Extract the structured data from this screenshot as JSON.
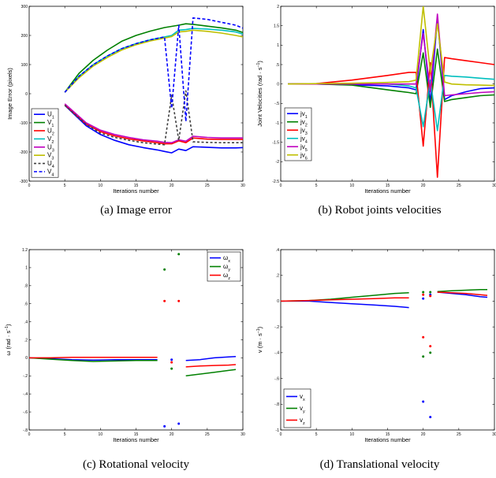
{
  "chart_data": [
    {
      "type": "line",
      "caption": "(a) Image error",
      "xlabel": "Iterations number",
      "ylabel": "Image Error (pixels)",
      "xlim": [
        0,
        30
      ],
      "ylim": [
        -300,
        300
      ],
      "xticks": [
        0,
        5,
        10,
        15,
        20,
        25,
        30
      ],
      "yticks": [
        -300,
        -200,
        -100,
        0,
        100,
        200,
        300
      ],
      "legend_position": "bottom-left",
      "series": [
        {
          "label": "U",
          "sub": "1",
          "color": "#0000ff",
          "dash": "",
          "x": [
            5,
            8,
            10,
            12,
            14,
            16,
            18,
            19,
            20,
            21,
            22,
            23,
            25,
            27,
            28,
            29,
            30
          ],
          "y": [
            -40,
            -110,
            -140,
            -160,
            -175,
            -185,
            -193,
            -198,
            -203,
            -190,
            -195,
            -182,
            -184,
            -186,
            -186,
            -186,
            -185
          ]
        },
        {
          "label": "V",
          "sub": "1",
          "color": "#008000",
          "dash": "",
          "x": [
            5,
            7,
            9,
            11,
            13,
            15,
            17,
            19,
            21,
            22,
            23,
            25,
            27,
            29,
            30
          ],
          "y": [
            5,
            70,
            115,
            150,
            180,
            200,
            215,
            227,
            235,
            240,
            238,
            232,
            226,
            218,
            210
          ]
        },
        {
          "label": "U",
          "sub": "2",
          "color": "#ff0000",
          "dash": "",
          "x": [
            5,
            8,
            10,
            12,
            14,
            16,
            18,
            19,
            20,
            21,
            22,
            23,
            25,
            27,
            29,
            30
          ],
          "y": [
            -38,
            -105,
            -130,
            -145,
            -155,
            -162,
            -168,
            -172,
            -172,
            -162,
            -168,
            -152,
            -156,
            -157,
            -157,
            -157
          ]
        },
        {
          "label": "V",
          "sub": "2",
          "color": "#00bfbf",
          "dash": "",
          "x": [
            5,
            7,
            9,
            11,
            13,
            15,
            17,
            19,
            20,
            21,
            22,
            23,
            25,
            27,
            29,
            30
          ],
          "y": [
            5,
            60,
            100,
            130,
            155,
            172,
            185,
            195,
            200,
            218,
            220,
            224,
            222,
            218,
            212,
            205
          ]
        },
        {
          "label": "U",
          "sub": "3",
          "color": "#bf00bf",
          "dash": "",
          "x": [
            5,
            8,
            10,
            12,
            14,
            16,
            18,
            19,
            20,
            21,
            22,
            23,
            25,
            27,
            29,
            30
          ],
          "y": [
            -35,
            -100,
            -125,
            -140,
            -150,
            -158,
            -163,
            -167,
            -168,
            -158,
            -163,
            -146,
            -150,
            -152,
            -152,
            -152
          ]
        },
        {
          "label": "V",
          "sub": "3",
          "color": "#bfbf00",
          "dash": "",
          "x": [
            5,
            7,
            9,
            11,
            13,
            15,
            17,
            19,
            20,
            21,
            22,
            23,
            25,
            27,
            29,
            30
          ],
          "y": [
            5,
            55,
            95,
            125,
            150,
            168,
            181,
            191,
            196,
            212,
            214,
            218,
            214,
            208,
            200,
            195
          ]
        },
        {
          "label": "U",
          "sub": "4",
          "color": "#404040",
          "dash": "3,2.5",
          "x": [
            5,
            8,
            10,
            12,
            14,
            16,
            18,
            19,
            20,
            21,
            22,
            23,
            25,
            27,
            29,
            30
          ],
          "y": [
            -40,
            -105,
            -135,
            -150,
            -160,
            -168,
            -173,
            -175,
            -5,
            -160,
            10,
            -165,
            -167,
            -168,
            -168,
            -168
          ]
        },
        {
          "label": "V",
          "sub": "4",
          "color": "#0000ff",
          "dash": "4,2.5",
          "x": [
            5,
            7,
            9,
            11,
            13,
            15,
            17,
            19,
            20,
            21,
            22,
            23,
            25,
            27,
            29,
            30
          ],
          "y": [
            5,
            60,
            100,
            130,
            155,
            172,
            185,
            195,
            -50,
            235,
            -95,
            260,
            255,
            245,
            235,
            225
          ]
        }
      ]
    },
    {
      "type": "line",
      "caption": "(b) Robot joints velocities",
      "xlabel": "Iterations number",
      "ylabel": "Joint Velocities (rad · s",
      "ylabel_sup": "−1",
      "ylabel_end": ")",
      "xlim": [
        0,
        30
      ],
      "ylim": [
        -2.5,
        2
      ],
      "xticks": [
        0,
        5,
        10,
        15,
        20,
        25,
        30
      ],
      "yticks": [
        -2.5,
        -2,
        -1.5,
        -1,
        -0.5,
        0,
        0.5,
        1,
        1.5,
        2
      ],
      "legend_position": "bottom-left",
      "series": [
        {
          "label": "jv",
          "sub": "1",
          "color": "#0000ff",
          "dash": "",
          "x": [
            1,
            5,
            10,
            15,
            18,
            19,
            20,
            21,
            22,
            23,
            24,
            26,
            28,
            30
          ],
          "y": [
            0,
            0,
            -0.02,
            -0.05,
            -0.1,
            -0.15,
            1.4,
            -0.5,
            1.7,
            -0.4,
            -0.3,
            -0.2,
            -0.12,
            -0.1
          ]
        },
        {
          "label": "jv",
          "sub": "2",
          "color": "#008000",
          "dash": "",
          "x": [
            1,
            5,
            10,
            15,
            18,
            19,
            20,
            21,
            22,
            23,
            24,
            26,
            28,
            30
          ],
          "y": [
            0,
            0,
            -0.03,
            -0.15,
            -0.22,
            -0.25,
            0.8,
            -0.6,
            0.9,
            -0.45,
            -0.4,
            -0.35,
            -0.3,
            -0.28
          ]
        },
        {
          "label": "jv",
          "sub": "3",
          "color": "#ff0000",
          "dash": "",
          "x": [
            1,
            5,
            10,
            15,
            18,
            19,
            20,
            21,
            22,
            23,
            24,
            26,
            28,
            30
          ],
          "y": [
            0,
            0.01,
            0.1,
            0.22,
            0.3,
            0.3,
            -1.6,
            0.55,
            -2.4,
            0.68,
            0.65,
            0.6,
            0.55,
            0.5
          ]
        },
        {
          "label": "jv",
          "sub": "4",
          "color": "#00bfbf",
          "dash": "",
          "x": [
            1,
            5,
            10,
            15,
            18,
            19,
            20,
            21,
            22,
            23,
            24,
            26,
            28,
            30
          ],
          "y": [
            0,
            0,
            0,
            0,
            -0.05,
            -0.1,
            -1.1,
            0.1,
            -1.2,
            0.22,
            0.2,
            0.18,
            0.15,
            0.12
          ]
        },
        {
          "label": "jv",
          "sub": "5",
          "color": "#bf00bf",
          "dash": "",
          "x": [
            1,
            5,
            10,
            15,
            18,
            19,
            20,
            21,
            22,
            23,
            24,
            26,
            28,
            30
          ],
          "y": [
            0,
            0,
            0,
            0,
            0,
            0,
            1.3,
            -0.2,
            1.8,
            -0.3,
            -0.28,
            -0.25,
            -0.22,
            -0.2
          ]
        },
        {
          "label": "jv",
          "sub": "6",
          "color": "#bfbf00",
          "dash": "",
          "x": [
            1,
            5,
            10,
            15,
            18,
            19,
            20,
            21,
            22,
            23,
            24,
            26,
            28,
            30
          ],
          "y": [
            0,
            0.01,
            0.02,
            0.04,
            0.06,
            0.1,
            2.0,
            0.3,
            1.55,
            0.05,
            0,
            -0.02,
            -0.03,
            -0.04
          ]
        }
      ]
    },
    {
      "type": "line",
      "caption": "(c) Rotational velocity",
      "xlabel": "Iterations number",
      "ylabel": "ω (rad · s",
      "ylabel_sup": "−1",
      "ylabel_end": ")",
      "xlim": [
        0,
        30
      ],
      "ylim": [
        -0.8,
        1.2
      ],
      "xticks": [
        0,
        5,
        10,
        15,
        20,
        25,
        30
      ],
      "yticks": [
        -0.8,
        -0.6,
        -0.4,
        -0.2,
        0,
        0.2,
        0.4,
        0.6,
        0.8,
        1,
        1.2
      ],
      "legend_position": "top-right",
      "series": [
        {
          "label": "ω",
          "sub": "x",
          "color": "#0000ff",
          "dash": "",
          "x": [
            0,
            3,
            6,
            9,
            12,
            15,
            18
          ],
          "y": [
            0,
            -0.01,
            -0.02,
            -0.025,
            -0.02,
            -0.02,
            -0.02
          ],
          "x2": [
            22,
            24,
            26,
            28,
            29
          ],
          "y2": [
            -0.03,
            -0.02,
            0,
            0.01,
            0.015
          ],
          "px": [
            19,
            20,
            21
          ],
          "py": [
            -0.76,
            -0.02,
            -0.73
          ]
        },
        {
          "label": "ω",
          "sub": "y",
          "color": "#008000",
          "dash": "",
          "x": [
            0,
            3,
            6,
            9,
            12,
            15,
            18
          ],
          "y": [
            0,
            -0.015,
            -0.03,
            -0.04,
            -0.035,
            -0.03,
            -0.03
          ],
          "x2": [
            22,
            24,
            26,
            28,
            29
          ],
          "y2": [
            -0.2,
            -0.18,
            -0.16,
            -0.14,
            -0.13
          ],
          "px": [
            19,
            20,
            21
          ],
          "py": [
            0.98,
            -0.12,
            1.15
          ]
        },
        {
          "label": "ω",
          "sub": "z",
          "color": "#ff0000",
          "dash": "",
          "x": [
            0,
            3,
            6,
            9,
            12,
            15,
            18
          ],
          "y": [
            0,
            0,
            0.005,
            0.005,
            0.005,
            0.005,
            0.005
          ],
          "x2": [
            22,
            24,
            26,
            28,
            29
          ],
          "y2": [
            -0.1,
            -0.09,
            -0.085,
            -0.08,
            -0.075
          ],
          "px": [
            19,
            20,
            21
          ],
          "py": [
            0.63,
            -0.05,
            0.63
          ]
        }
      ]
    },
    {
      "type": "line",
      "caption": "(d) Translational velocity",
      "xlabel": "Iterations number",
      "ylabel": "v (m · s",
      "ylabel_sup": "−1",
      "ylabel_end": ")",
      "xlim": [
        0,
        30
      ],
      "ylim": [
        -1,
        0.4
      ],
      "xticks": [
        0,
        5,
        10,
        15,
        20,
        25,
        30
      ],
      "yticks": [
        -1,
        -0.8,
        -0.6,
        -0.4,
        -0.2,
        0,
        0.2,
        0.4
      ],
      "legend_position": "bottom-left",
      "series": [
        {
          "label": "v",
          "sub": "x",
          "color": "#0000ff",
          "dash": "",
          "x": [
            0,
            4,
            7,
            10,
            13,
            16,
            18
          ],
          "y": [
            0,
            0,
            -0.01,
            -0.02,
            -0.03,
            -0.04,
            -0.05
          ],
          "x2": [
            22,
            24,
            26,
            28,
            29
          ],
          "y2": [
            0.07,
            0.06,
            0.05,
            0.035,
            0.03
          ],
          "px": [
            20,
            21
          ],
          "py": [
            -0.78,
            -0.9
          ],
          "px2": [
            20,
            21
          ],
          "py2": [
            0.02,
            0.05
          ]
        },
        {
          "label": "v",
          "sub": "y",
          "color": "#008000",
          "dash": "",
          "x": [
            0,
            4,
            7,
            10,
            13,
            16,
            18
          ],
          "y": [
            0,
            0.005,
            0.015,
            0.03,
            0.045,
            0.06,
            0.065
          ],
          "x2": [
            22,
            24,
            26,
            28,
            29
          ],
          "y2": [
            0.075,
            0.08,
            0.085,
            0.09,
            0.09
          ],
          "px": [
            20,
            21
          ],
          "py": [
            -0.43,
            -0.4
          ],
          "px2": [
            20,
            21
          ],
          "py2": [
            0.07,
            0.07
          ]
        },
        {
          "label": "v",
          "sub": "z",
          "color": "#ff0000",
          "dash": "",
          "x": [
            0,
            4,
            7,
            10,
            13,
            16,
            18
          ],
          "y": [
            0,
            0.005,
            0.01,
            0.015,
            0.02,
            0.025,
            0.025
          ],
          "x2": [
            22,
            24,
            26,
            28,
            29
          ],
          "y2": [
            0.07,
            0.065,
            0.06,
            0.05,
            0.045
          ],
          "px": [
            20,
            21
          ],
          "py": [
            -0.28,
            -0.35
          ],
          "px2": [
            20,
            21
          ],
          "py2": [
            0.05,
            0.04
          ]
        }
      ]
    }
  ]
}
